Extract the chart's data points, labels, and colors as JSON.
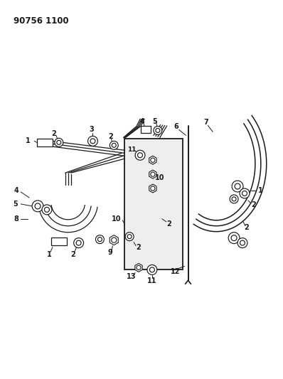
{
  "title": "90756 1100",
  "bg": "#ffffff",
  "lc": "#1a1a1a",
  "fig_w": 3.98,
  "fig_h": 5.33,
  "dpi": 100
}
